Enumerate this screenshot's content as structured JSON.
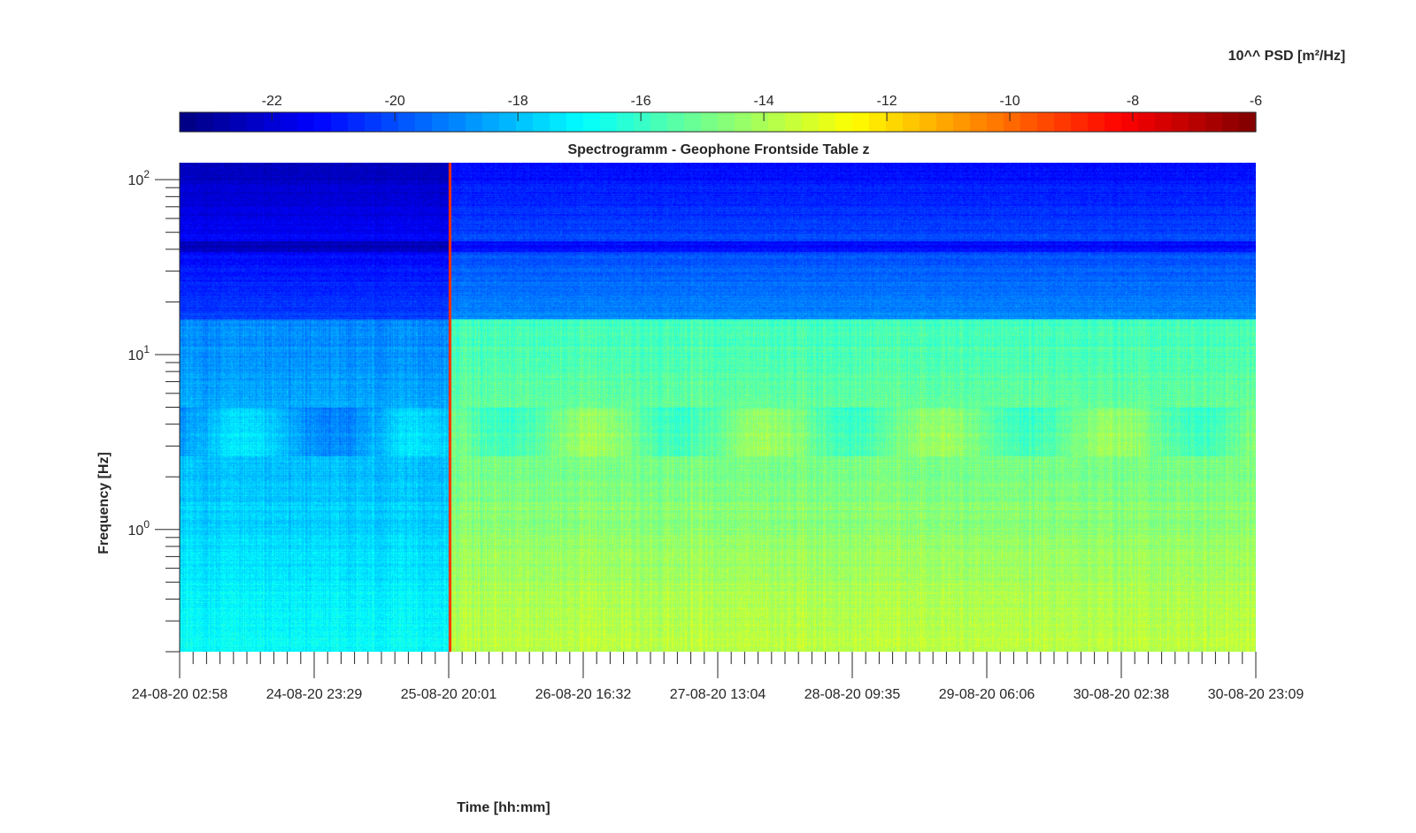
{
  "chart_data": {
    "type": "heatmap",
    "title": "Spectrogramm - Geophone Frontside Table z",
    "xlabel": "Time [hh:mm]",
    "ylabel": "Frequency [Hz]",
    "y_scale": "log",
    "ylim": [
      0.2,
      125
    ],
    "y_major_ticks": [
      {
        "value": 1,
        "base": "10",
        "exp": "0"
      },
      {
        "value": 10,
        "base": "10",
        "exp": "1"
      },
      {
        "value": 100,
        "base": "10",
        "exp": "2"
      }
    ],
    "x_tick_labels": [
      "24-08-20 02:58",
      "24-08-20 23:29",
      "25-08-20 20:01",
      "26-08-20 16:32",
      "27-08-20 13:04",
      "28-08-20 09:35",
      "29-08-20 06:06",
      "30-08-20 02:38",
      "30-08-20 23:09"
    ],
    "x_minor_per_major": 10,
    "colorbar": {
      "label": "10^^ PSD [m²/Hz]",
      "range": [
        -23.5,
        -6
      ],
      "ticks": [
        "-22",
        "-20",
        "-18",
        "-16",
        "-14",
        "-12",
        "-10",
        "-8",
        "-6"
      ],
      "colormap": "jet"
    },
    "features": {
      "start_quiet_segment_end_fraction": 0.21,
      "event_line_fraction": 0.21,
      "typical_log10_psd_upper_band": -19,
      "typical_log10_psd_lower_band": -14.5
    }
  }
}
